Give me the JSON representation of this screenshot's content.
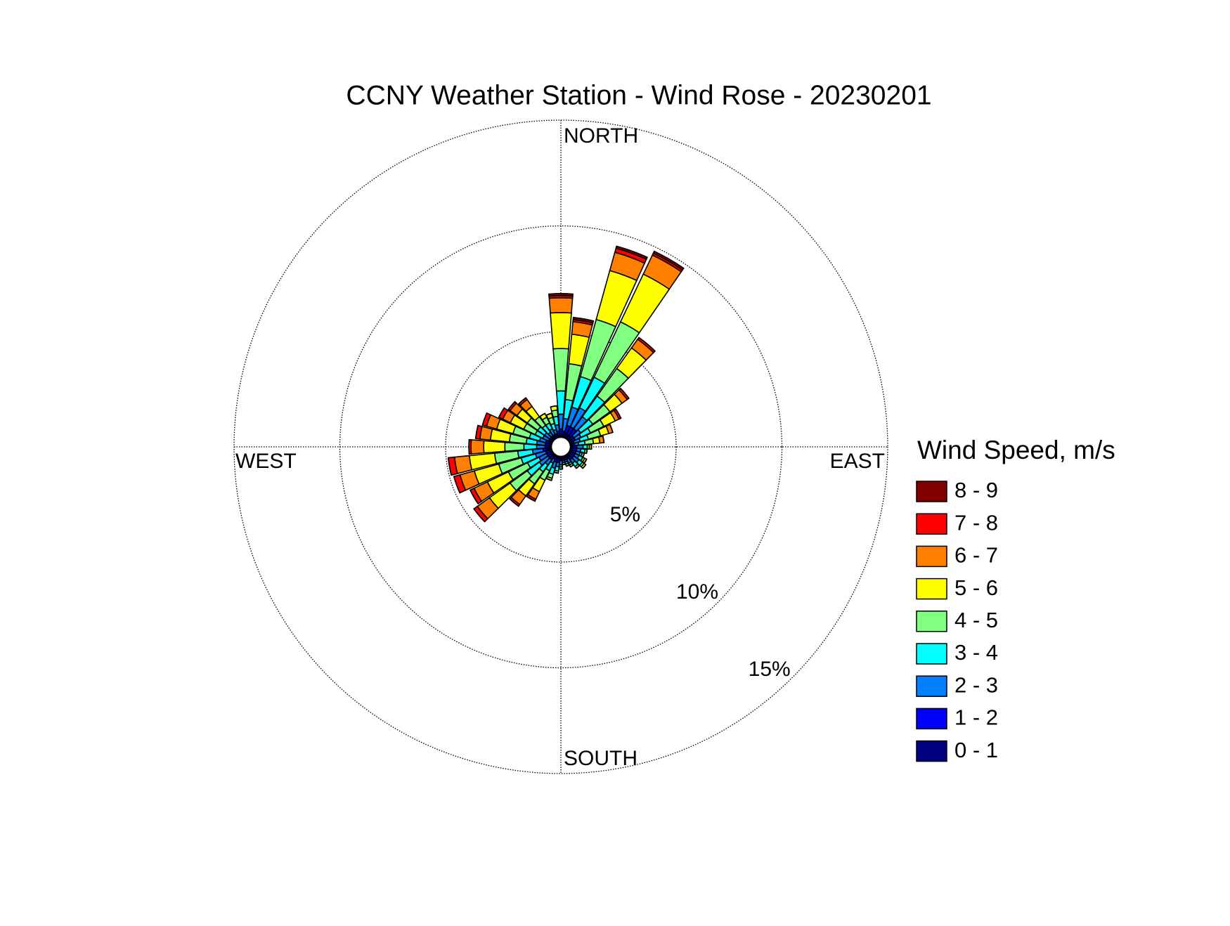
{
  "chart_data": {
    "type": "windrose",
    "title": "CCNY Weather Station - Wind Rose - 20230201",
    "legend_title": "Wind Speed, m/s",
    "compass_labels": [
      "NORTH",
      "EAST",
      "SOUTH",
      "WEST"
    ],
    "directions": [
      0,
      10,
      20,
      30,
      40,
      50,
      60,
      70,
      80,
      90,
      100,
      110,
      120,
      130,
      140,
      150,
      160,
      170,
      180,
      190,
      200,
      210,
      220,
      230,
      240,
      250,
      260,
      270,
      280,
      290,
      300,
      310,
      320,
      330,
      340,
      350
    ],
    "rlim": [
      0,
      15
    ],
    "rticks": [
      {
        "value": 5,
        "label": "5%"
      },
      {
        "value": 10,
        "label": "10%"
      },
      {
        "value": 15,
        "label": "15%"
      }
    ],
    "series": [
      {
        "name": "0 - 1",
        "color": "#000080",
        "values": [
          0.1,
          0.1,
          0.2,
          0.2,
          0.2,
          0.1,
          0.1,
          0.1,
          0.1,
          0.1,
          0.1,
          0.1,
          0.1,
          0.1,
          0.1,
          0.1,
          0.1,
          0.1,
          0.1,
          0.1,
          0.1,
          0.1,
          0.1,
          0.1,
          0.1,
          0.1,
          0.2,
          0.1,
          0.1,
          0.1,
          0.1,
          0.1,
          0.1,
          0.1,
          0.1,
          0.1
        ]
      },
      {
        "name": "1 - 2",
        "color": "#0000ff",
        "values": [
          0.3,
          0.2,
          0.4,
          0.4,
          0.4,
          0.2,
          0.2,
          0.1,
          0.1,
          0.2,
          0.2,
          0.2,
          0.2,
          0.2,
          0.2,
          0.1,
          0.1,
          0.1,
          0.1,
          0.2,
          0.2,
          0.1,
          0.2,
          0.2,
          0.2,
          0.2,
          0.2,
          0.2,
          0.2,
          0.2,
          0.1,
          0.1,
          0.1,
          0.1,
          0.1,
          0.2
        ]
      },
      {
        "name": "2 - 3",
        "color": "#0080ff",
        "values": [
          0.7,
          0.6,
          0.9,
          1.0,
          0.7,
          0.4,
          0.3,
          0.3,
          0.2,
          0.3,
          0.2,
          0.2,
          0.2,
          0.3,
          0.2,
          0.2,
          0.1,
          0.1,
          0.2,
          0.2,
          0.3,
          0.2,
          0.3,
          0.5,
          0.4,
          0.5,
          0.5,
          0.4,
          0.4,
          0.3,
          0.3,
          0.3,
          0.2,
          0.3,
          0.2,
          0.3
        ]
      },
      {
        "name": "3 - 4",
        "color": "#00ffff",
        "values": [
          1.1,
          0.9,
          1.5,
          1.6,
          1.2,
          0.7,
          0.5,
          0.4,
          0.3,
          0.2,
          0.2,
          0.1,
          0.2,
          0.2,
          0.2,
          0.1,
          0.1,
          0.1,
          0.1,
          0.2,
          0.3,
          0.4,
          0.4,
          0.7,
          0.6,
          0.7,
          0.7,
          0.6,
          0.5,
          0.5,
          0.4,
          0.4,
          0.4,
          0.3,
          0.3,
          0.4
        ]
      },
      {
        "name": "4 - 5",
        "color": "#80ff80",
        "values": [
          2.0,
          1.7,
          2.8,
          2.9,
          1.6,
          1.0,
          0.7,
          0.6,
          0.4,
          0.1,
          0.1,
          0.1,
          0.1,
          0.1,
          0.1,
          0.1,
          0.1,
          0,
          0.1,
          0.1,
          0.2,
          0.5,
          0.7,
          1.0,
          1.0,
          1.1,
          1.1,
          0.9,
          0.8,
          0.8,
          0.6,
          0.6,
          0.5,
          0.3,
          0.3,
          0.3
        ]
      },
      {
        "name": "5 - 6",
        "color": "#ffff00",
        "values": [
          1.7,
          1.4,
          2.4,
          2.5,
          1.2,
          0.7,
          0.6,
          0.4,
          0.3,
          0.1,
          0,
          0,
          0.1,
          0.1,
          0,
          0,
          0,
          0,
          0,
          0,
          0.1,
          0.6,
          0.7,
          1.2,
          1.1,
          1.2,
          1.2,
          1.0,
          0.9,
          0.8,
          0.7,
          0.6,
          0.6,
          0.2,
          0.2,
          0.2
        ]
      },
      {
        "name": "6 - 7",
        "color": "#ff8000",
        "values": [
          0.7,
          0.6,
          0.9,
          1.0,
          0.5,
          0.3,
          0.2,
          0.2,
          0.2,
          0,
          0,
          0,
          0,
          0,
          0,
          0,
          0,
          0,
          0,
          0,
          0,
          0.4,
          0.5,
          0.7,
          0.7,
          0.7,
          0.7,
          0.6,
          0.5,
          0.5,
          0.4,
          0.4,
          0.4,
          0,
          0,
          0
        ]
      },
      {
        "name": "7 - 8",
        "color": "#ff0000",
        "values": [
          0.1,
          0.1,
          0.2,
          0.1,
          0.1,
          0.1,
          0.1,
          0,
          0,
          0,
          0,
          0,
          0,
          0,
          0,
          0,
          0,
          0,
          0,
          0,
          0,
          0.1,
          0.1,
          0.2,
          0.2,
          0.3,
          0.3,
          0.1,
          0.2,
          0.2,
          0.2,
          0.1,
          0.1,
          0,
          0,
          0
        ]
      },
      {
        "name": "8 - 9",
        "color": "#800000",
        "values": [
          0.1,
          0.1,
          0.1,
          0.1,
          0,
          0,
          0,
          0,
          0,
          0,
          0,
          0,
          0,
          0,
          0,
          0,
          0,
          0,
          0,
          0,
          0,
          0,
          0,
          0,
          0,
          0,
          0,
          0,
          0,
          0,
          0,
          0,
          0,
          0,
          0,
          0
        ]
      }
    ]
  }
}
